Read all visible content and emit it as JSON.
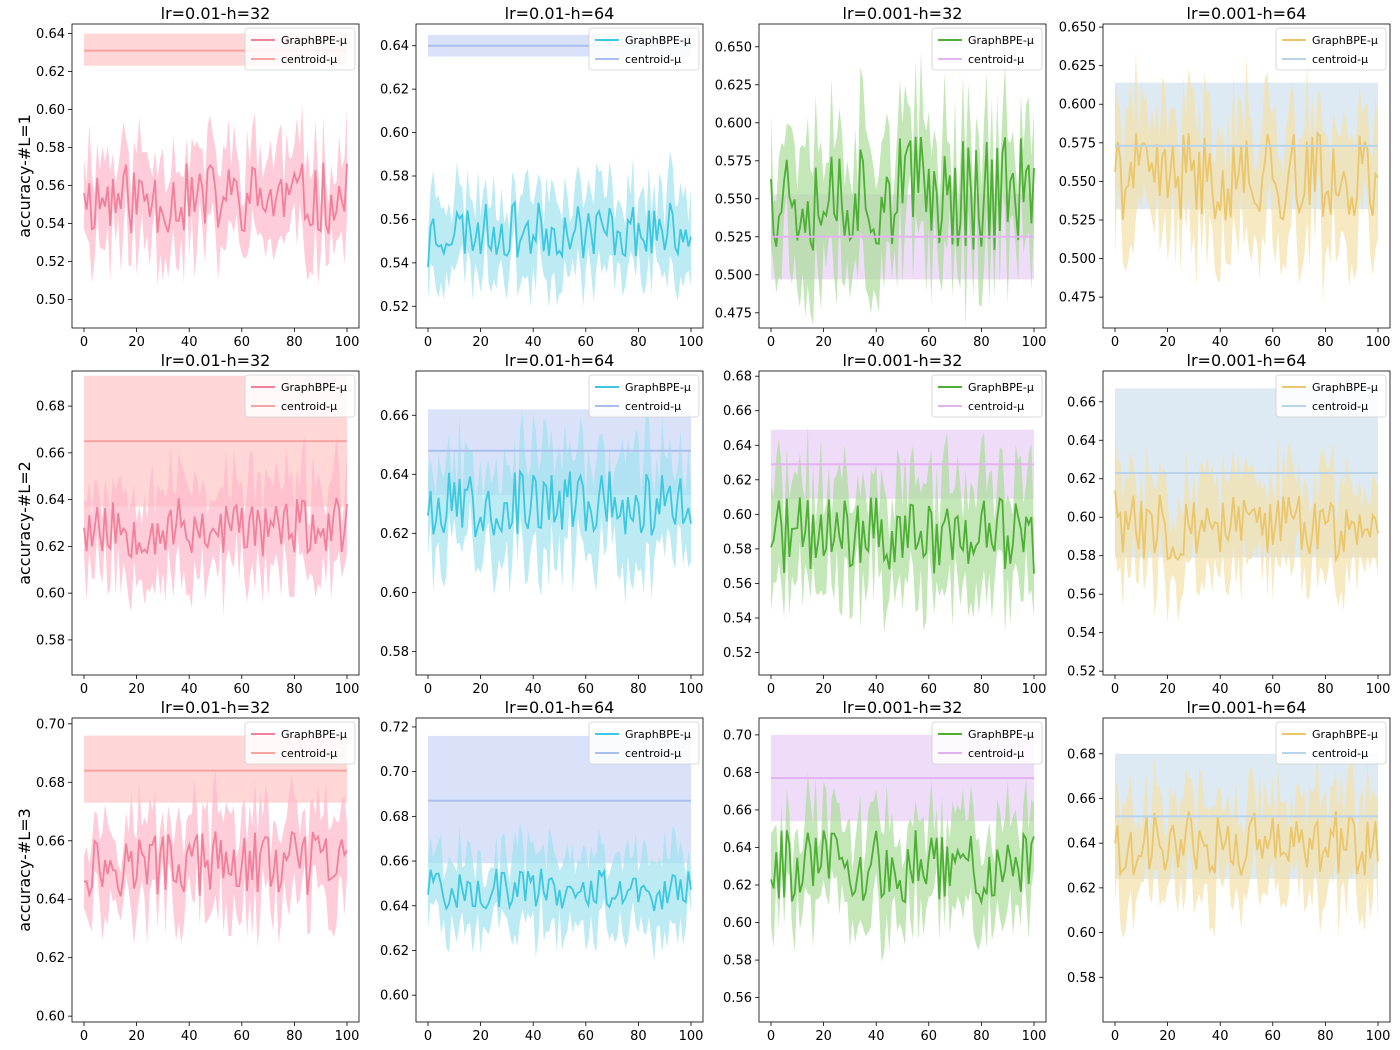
{
  "chart_data": [
    {
      "type": "line",
      "row": 0,
      "col": 0,
      "title": "lr=0.01-h=32",
      "ylabel": "accuracy-#L=1",
      "xlim": [
        0,
        100
      ],
      "ylim": [
        0.485,
        0.645
      ],
      "yticks": [
        0.5,
        0.52,
        0.54,
        0.56,
        0.58,
        0.6,
        0.62,
        0.64
      ],
      "xticks": [
        0,
        20,
        40,
        60,
        80,
        100
      ],
      "series": [
        {
          "name": "GraphBPE-μ",
          "color": "#f0809b",
          "band_color": "#ffb8c9",
          "mean": 0.553,
          "noise": 0.012,
          "band": 0.025,
          "seed": 11,
          "start": 0.556
        },
        {
          "name": "centroid-μ",
          "color": "#f5a3a3",
          "band_color": "#ffc9c9",
          "value": 0.631,
          "band_lo": 0.623,
          "band_hi": 0.64
        }
      ]
    },
    {
      "type": "line",
      "row": 0,
      "col": 1,
      "title": "lr=0.01-h=64",
      "ylabel": "",
      "xlim": [
        0,
        100
      ],
      "ylim": [
        0.51,
        0.65
      ],
      "yticks": [
        0.52,
        0.54,
        0.56,
        0.58,
        0.6,
        0.62,
        0.64
      ],
      "xticks": [
        0,
        20,
        40,
        60,
        80,
        100
      ],
      "series": [
        {
          "name": "GraphBPE-μ",
          "color": "#3ec8e0",
          "band_color": "#9fe3f0",
          "mean": 0.555,
          "noise": 0.008,
          "band": 0.018,
          "seed": 23,
          "start": 0.538
        },
        {
          "name": "centroid-μ",
          "color": "#aabfee",
          "band_color": "#ccd8f5",
          "value": 0.64,
          "band_lo": 0.635,
          "band_hi": 0.645
        }
      ]
    },
    {
      "type": "line",
      "row": 0,
      "col": 2,
      "title": "lr=0.001-h=32",
      "ylabel": "",
      "xlim": [
        0,
        100
      ],
      "ylim": [
        0.465,
        0.665
      ],
      "yticks": [
        0.475,
        0.5,
        0.525,
        0.55,
        0.575,
        0.6,
        0.625,
        0.65
      ],
      "xticks": [
        0,
        20,
        40,
        60,
        80,
        100
      ],
      "series": [
        {
          "name": "GraphBPE-μ",
          "color": "#4daf34",
          "band_color": "#a9dd98",
          "mean": 0.555,
          "noise": 0.025,
          "band": 0.04,
          "seed": 37,
          "start": 0.563
        },
        {
          "name": "centroid-μ",
          "color": "#e3b3ef",
          "band_color": "#ead0f5",
          "value": 0.525,
          "band_lo": 0.497,
          "band_hi": 0.553
        }
      ]
    },
    {
      "type": "line",
      "row": 0,
      "col": 3,
      "title": "lr=0.001-h=64",
      "ylabel": "",
      "xlim": [
        0,
        100
      ],
      "ylim": [
        0.455,
        0.652
      ],
      "yticks": [
        0.475,
        0.5,
        0.525,
        0.55,
        0.575,
        0.6,
        0.625,
        0.65
      ],
      "xticks": [
        0,
        20,
        40,
        60,
        80,
        100
      ],
      "series": [
        {
          "name": "GraphBPE-μ",
          "color": "#ebc66b",
          "band_color": "#f3dfa8",
          "mean": 0.553,
          "noise": 0.018,
          "band": 0.04,
          "seed": 41,
          "start": 0.556
        },
        {
          "name": "centroid-μ",
          "color": "#b9d3e8",
          "band_color": "#d2e3f0",
          "value": 0.573,
          "band_lo": 0.532,
          "band_hi": 0.614
        }
      ]
    },
    {
      "type": "line",
      "row": 1,
      "col": 0,
      "title": "lr=0.01-h=32",
      "ylabel": "accuracy-#L=2",
      "xlim": [
        0,
        100
      ],
      "ylim": [
        0.565,
        0.695
      ],
      "yticks": [
        0.58,
        0.6,
        0.62,
        0.64,
        0.66,
        0.68
      ],
      "xticks": [
        0,
        20,
        40,
        60,
        80,
        100
      ],
      "series": [
        {
          "name": "GraphBPE-μ",
          "color": "#f0809b",
          "band_color": "#ffb8c9",
          "mean": 0.628,
          "noise": 0.008,
          "band": 0.02,
          "seed": 53,
          "start": 0.628
        },
        {
          "name": "centroid-μ",
          "color": "#f5a3a3",
          "band_color": "#ffc9c9",
          "value": 0.665,
          "band_lo": 0.637,
          "band_hi": 0.693
        }
      ]
    },
    {
      "type": "line",
      "row": 1,
      "col": 1,
      "title": "lr=0.01-h=64",
      "ylabel": "",
      "xlim": [
        0,
        100
      ],
      "ylim": [
        0.572,
        0.675
      ],
      "yticks": [
        0.58,
        0.6,
        0.62,
        0.64,
        0.66
      ],
      "xticks": [
        0,
        20,
        40,
        60,
        80,
        100
      ],
      "series": [
        {
          "name": "GraphBPE-μ",
          "color": "#3ec8e0",
          "band_color": "#9fe3f0",
          "mean": 0.63,
          "noise": 0.007,
          "band": 0.017,
          "seed": 67,
          "start": 0.626
        },
        {
          "name": "centroid-μ",
          "color": "#aabfee",
          "band_color": "#ccd8f5",
          "value": 0.648,
          "band_lo": 0.633,
          "band_hi": 0.662
        }
      ]
    },
    {
      "type": "line",
      "row": 1,
      "col": 2,
      "title": "lr=0.001-h=32",
      "ylabel": "",
      "xlim": [
        0,
        100
      ],
      "ylim": [
        0.507,
        0.683
      ],
      "yticks": [
        0.52,
        0.54,
        0.56,
        0.58,
        0.6,
        0.62,
        0.64,
        0.66,
        0.68
      ],
      "xticks": [
        0,
        20,
        40,
        60,
        80,
        100
      ],
      "series": [
        {
          "name": "GraphBPE-μ",
          "color": "#4daf34",
          "band_color": "#a9dd98",
          "mean": 0.588,
          "noise": 0.014,
          "band": 0.032,
          "seed": 71,
          "start": 0.581
        },
        {
          "name": "centroid-μ",
          "color": "#e3b3ef",
          "band_color": "#ead0f5",
          "value": 0.629,
          "band_lo": 0.609,
          "band_hi": 0.649
        }
      ]
    },
    {
      "type": "line",
      "row": 1,
      "col": 3,
      "title": "lr=0.001-h=64",
      "ylabel": "",
      "xlim": [
        0,
        100
      ],
      "ylim": [
        0.518,
        0.676
      ],
      "yticks": [
        0.52,
        0.54,
        0.56,
        0.58,
        0.6,
        0.62,
        0.64,
        0.66
      ],
      "xticks": [
        0,
        20,
        40,
        60,
        80,
        100
      ],
      "series": [
        {
          "name": "GraphBPE-μ",
          "color": "#ebc66b",
          "band_color": "#f3dfa8",
          "mean": 0.595,
          "noise": 0.011,
          "band": 0.025,
          "seed": 83,
          "start": 0.614
        },
        {
          "name": "centroid-μ",
          "color": "#b9d3e8",
          "band_color": "#d2e3f0",
          "value": 0.623,
          "band_lo": 0.579,
          "band_hi": 0.667
        }
      ]
    },
    {
      "type": "line",
      "row": 2,
      "col": 0,
      "title": "lr=0.01-h=32",
      "ylabel": "accuracy-#L=3",
      "xlim": [
        0,
        100
      ],
      "ylim": [
        0.598,
        0.702
      ],
      "yticks": [
        0.6,
        0.62,
        0.64,
        0.66,
        0.68,
        0.7
      ],
      "xticks": [
        0,
        20,
        40,
        60,
        80,
        100
      ],
      "series": [
        {
          "name": "GraphBPE-μ",
          "color": "#f0809b",
          "band_color": "#ffb8c9",
          "mean": 0.652,
          "noise": 0.007,
          "band": 0.016,
          "seed": 97,
          "start": 0.646
        },
        {
          "name": "centroid-μ",
          "color": "#f5a3a3",
          "band_color": "#ffc9c9",
          "value": 0.684,
          "band_lo": 0.673,
          "band_hi": 0.696
        }
      ]
    },
    {
      "type": "line",
      "row": 2,
      "col": 1,
      "title": "lr=0.01-h=64",
      "ylabel": "",
      "xlim": [
        0,
        100
      ],
      "ylim": [
        0.588,
        0.724
      ],
      "yticks": [
        0.6,
        0.62,
        0.64,
        0.66,
        0.68,
        0.7,
        0.72
      ],
      "xticks": [
        0,
        20,
        40,
        60,
        80,
        100
      ],
      "series": [
        {
          "name": "GraphBPE-μ",
          "color": "#3ec8e0",
          "band_color": "#9fe3f0",
          "mean": 0.647,
          "noise": 0.006,
          "band": 0.017,
          "seed": 101,
          "start": 0.645
        },
        {
          "name": "centroid-μ",
          "color": "#aabfee",
          "band_color": "#ccd8f5",
          "value": 0.687,
          "band_lo": 0.659,
          "band_hi": 0.716
        }
      ]
    },
    {
      "type": "line",
      "row": 2,
      "col": 2,
      "title": "lr=0.001-h=32",
      "ylabel": "",
      "xlim": [
        0,
        100
      ],
      "ylim": [
        0.547,
        0.709
      ],
      "yticks": [
        0.56,
        0.58,
        0.6,
        0.62,
        0.64,
        0.66,
        0.68,
        0.7
      ],
      "xticks": [
        0,
        20,
        40,
        60,
        80,
        100
      ],
      "series": [
        {
          "name": "GraphBPE-μ",
          "color": "#4daf34",
          "band_color": "#a9dd98",
          "mean": 0.63,
          "noise": 0.012,
          "band": 0.025,
          "seed": 113,
          "start": 0.623
        },
        {
          "name": "centroid-μ",
          "color": "#e3b3ef",
          "band_color": "#ead0f5",
          "value": 0.677,
          "band_lo": 0.654,
          "band_hi": 0.7
        }
      ]
    },
    {
      "type": "line",
      "row": 2,
      "col": 3,
      "title": "lr=0.001-h=64",
      "ylabel": "",
      "xlim": [
        0,
        100
      ],
      "ylim": [
        0.56,
        0.696
      ],
      "yticks": [
        0.58,
        0.6,
        0.62,
        0.64,
        0.66,
        0.68
      ],
      "xticks": [
        0,
        20,
        40,
        60,
        80,
        100
      ],
      "series": [
        {
          "name": "GraphBPE-μ",
          "color": "#ebc66b",
          "band_color": "#f3dfa8",
          "mean": 0.64,
          "noise": 0.009,
          "band": 0.022,
          "seed": 127,
          "start": 0.64
        },
        {
          "name": "centroid-μ",
          "color": "#b9d3e8",
          "band_color": "#d2e3f0",
          "value": 0.652,
          "band_lo": 0.624,
          "band_hi": 0.68
        }
      ]
    }
  ]
}
